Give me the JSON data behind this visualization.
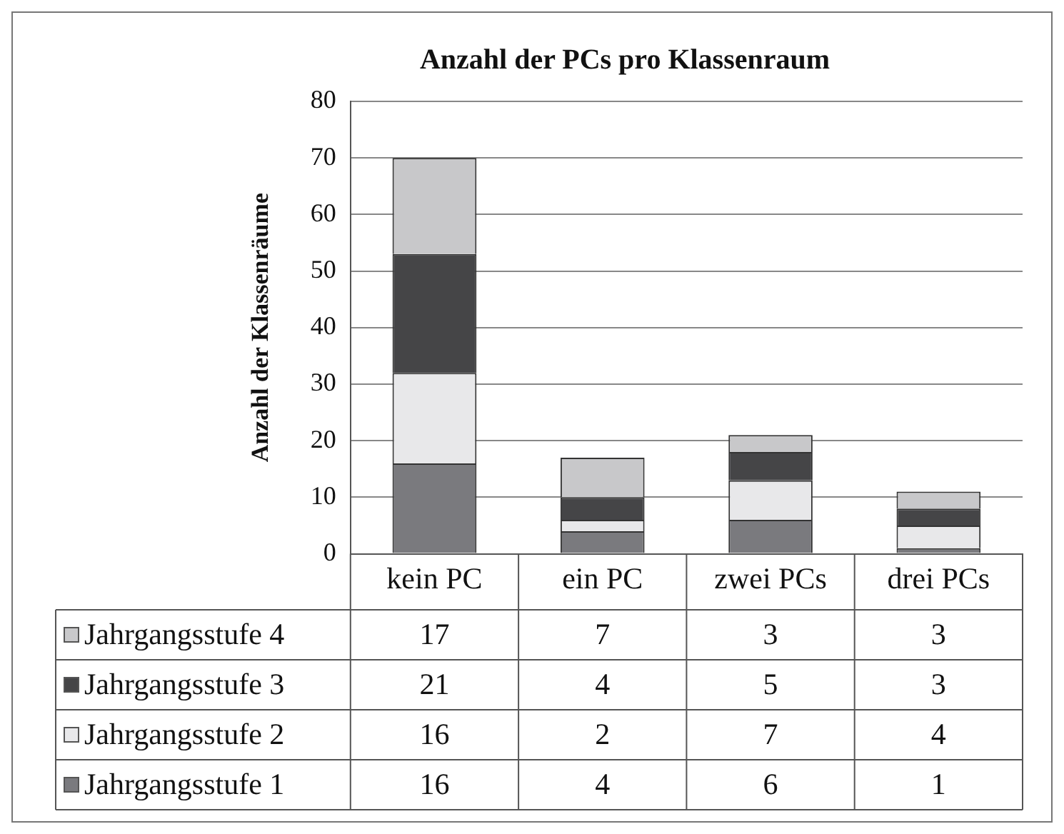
{
  "chart_data": {
    "type": "bar",
    "title": "Anzahl der PCs pro Klassenraum",
    "ylabel": "Anzahl der Klassenräume",
    "categories": [
      "kein PC",
      "ein PC",
      "zwei PCs",
      "drei PCs"
    ],
    "stacked": true,
    "ylim": [
      0,
      80
    ],
    "yticks": [
      0,
      10,
      20,
      30,
      40,
      50,
      60,
      70,
      80
    ],
    "grid": "y",
    "legend": "bottom",
    "data_labels": true,
    "series": [
      {
        "name": "Jahrgangsstufe 1",
        "color": "#7a7a7e",
        "values": [
          16,
          4,
          6,
          1
        ]
      },
      {
        "name": "Jahrgangsstufe 2",
        "color": "#e8e8ea",
        "values": [
          16,
          2,
          7,
          4
        ]
      },
      {
        "name": "Jahrgangsstufe 3",
        "color": "#454547",
        "values": [
          21,
          4,
          5,
          3
        ]
      },
      {
        "name": "Jahrgangsstufe 4",
        "color": "#c8c8ca",
        "values": [
          17,
          7,
          3,
          3
        ]
      }
    ]
  }
}
